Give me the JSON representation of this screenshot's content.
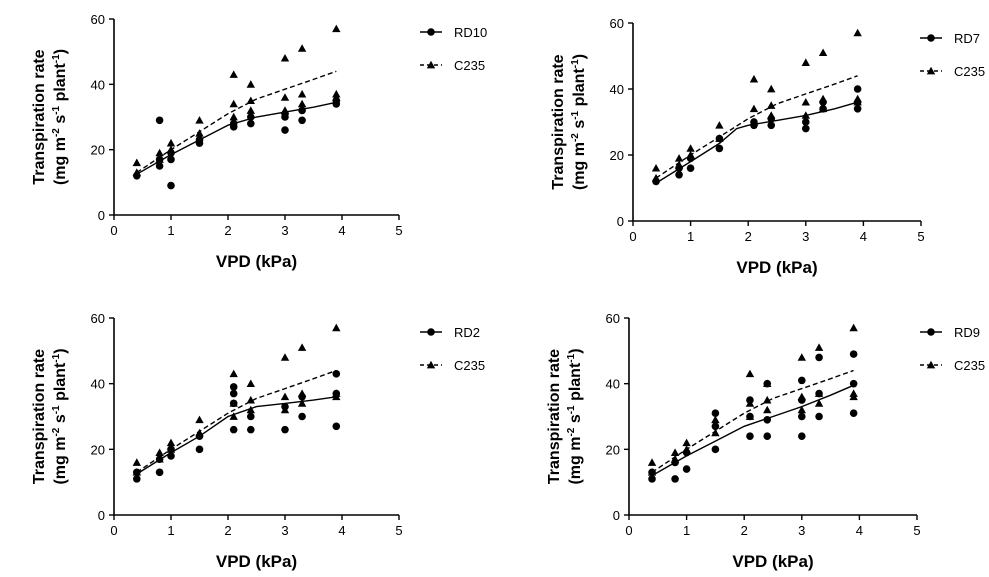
{
  "chart_data": [
    {
      "type": "scatter",
      "xlabel": "VPD (kPa)",
      "ylabel_line1": "Transpiration rate",
      "ylabel_line2_parts": [
        "(mg m",
        "-2",
        " s",
        "-1",
        " plant",
        "-1",
        ")"
      ],
      "xlim": [
        0,
        5
      ],
      "ylim": [
        0,
        60
      ],
      "xticks": [
        "0",
        "1",
        "2",
        "3",
        "4",
        "5"
      ],
      "yticks": [
        "0",
        "20",
        "40",
        "60"
      ],
      "legend_position": "top-right",
      "series": [
        {
          "name": "RD10",
          "marker": "circle",
          "line": "solid",
          "points": [
            [
              0.4,
              12
            ],
            [
              0.8,
              15
            ],
            [
              0.8,
              17
            ],
            [
              0.8,
              29
            ],
            [
              1.0,
              9
            ],
            [
              1.0,
              17
            ],
            [
              1.0,
              19
            ],
            [
              1.5,
              22
            ],
            [
              1.5,
              23
            ],
            [
              2.1,
              27
            ],
            [
              2.1,
              28
            ],
            [
              2.4,
              28
            ],
            [
              2.4,
              30
            ],
            [
              3.0,
              26
            ],
            [
              3.0,
              30
            ],
            [
              3.0,
              31
            ],
            [
              3.3,
              29
            ],
            [
              3.3,
              32
            ],
            [
              3.9,
              34
            ],
            [
              3.9,
              35
            ]
          ],
          "fit": [
            [
              0.4,
              12.5
            ],
            [
              1.0,
              18.5
            ],
            [
              1.5,
              23
            ],
            [
              2.0,
              27.5
            ],
            [
              2.5,
              30
            ],
            [
              3.0,
              31.5
            ],
            [
              3.5,
              33
            ],
            [
              3.9,
              34.5
            ]
          ]
        },
        {
          "name": "C235",
          "marker": "triangle",
          "line": "dashed",
          "points": [
            [
              0.4,
              13
            ],
            [
              0.4,
              16
            ],
            [
              0.8,
              17
            ],
            [
              0.8,
              19
            ],
            [
              1.0,
              20
            ],
            [
              1.0,
              22
            ],
            [
              1.5,
              25
            ],
            [
              1.5,
              29
            ],
            [
              2.1,
              30
            ],
            [
              2.1,
              34
            ],
            [
              2.1,
              43
            ],
            [
              2.4,
              32
            ],
            [
              2.4,
              35
            ],
            [
              2.4,
              40
            ],
            [
              3.0,
              32
            ],
            [
              3.0,
              36
            ],
            [
              3.0,
              48
            ],
            [
              3.3,
              34
            ],
            [
              3.3,
              37
            ],
            [
              3.3,
              51
            ],
            [
              3.9,
              36
            ],
            [
              3.9,
              37
            ],
            [
              3.9,
              57
            ]
          ],
          "fit": [
            [
              0.4,
              13
            ],
            [
              1.0,
              20
            ],
            [
              1.5,
              25.5
            ],
            [
              2.0,
              31
            ],
            [
              2.5,
              35.5
            ],
            [
              3.0,
              38.5
            ],
            [
              3.5,
              41.5
            ],
            [
              3.9,
              44
            ]
          ]
        }
      ]
    },
    {
      "type": "scatter",
      "xlabel": "VPD (kPa)",
      "ylabel_line1": "Transpiration rate",
      "ylabel_line2_parts": [
        "(mg m",
        "-2",
        " s",
        "-1",
        " plant",
        "-1",
        ")"
      ],
      "xlim": [
        0,
        5
      ],
      "ylim": [
        0,
        60
      ],
      "xticks": [
        "0",
        "1",
        "2",
        "3",
        "4",
        "5"
      ],
      "yticks": [
        "0",
        "20",
        "40",
        "60"
      ],
      "legend_position": "top-right",
      "series": [
        {
          "name": "RD7",
          "marker": "circle",
          "line": "solid",
          "points": [
            [
              0.4,
              12
            ],
            [
              0.8,
              14
            ],
            [
              0.8,
              16
            ],
            [
              1.0,
              16
            ],
            [
              1.0,
              19
            ],
            [
              1.5,
              22
            ],
            [
              1.5,
              25
            ],
            [
              2.1,
              29
            ],
            [
              2.1,
              30
            ],
            [
              2.4,
              29
            ],
            [
              2.4,
              31
            ],
            [
              3.0,
              28
            ],
            [
              3.0,
              30
            ],
            [
              3.3,
              34
            ],
            [
              3.3,
              36
            ],
            [
              3.9,
              34
            ],
            [
              3.9,
              36
            ],
            [
              3.9,
              40
            ]
          ],
          "fit": [
            [
              0.4,
              11.5
            ],
            [
              1.0,
              18
            ],
            [
              1.5,
              23.5
            ],
            [
              1.8,
              28
            ],
            [
              2.0,
              29
            ],
            [
              2.5,
              30.5
            ],
            [
              3.0,
              32
            ],
            [
              3.5,
              34
            ],
            [
              3.9,
              36
            ]
          ]
        },
        {
          "name": "C235",
          "marker": "triangle",
          "line": "dashed",
          "points": [
            [
              0.4,
              13
            ],
            [
              0.4,
              16
            ],
            [
              0.8,
              17
            ],
            [
              0.8,
              19
            ],
            [
              1.0,
              20
            ],
            [
              1.0,
              22
            ],
            [
              1.5,
              25
            ],
            [
              1.5,
              29
            ],
            [
              2.1,
              30
            ],
            [
              2.1,
              34
            ],
            [
              2.1,
              43
            ],
            [
              2.4,
              32
            ],
            [
              2.4,
              35
            ],
            [
              2.4,
              40
            ],
            [
              3.0,
              32
            ],
            [
              3.0,
              36
            ],
            [
              3.0,
              48
            ],
            [
              3.3,
              34
            ],
            [
              3.3,
              37
            ],
            [
              3.3,
              51
            ],
            [
              3.9,
              36
            ],
            [
              3.9,
              37
            ],
            [
              3.9,
              57
            ]
          ],
          "fit": [
            [
              0.4,
              13
            ],
            [
              1.0,
              20
            ],
            [
              1.5,
              25.5
            ],
            [
              2.0,
              31
            ],
            [
              2.5,
              35.5
            ],
            [
              3.0,
              38.5
            ],
            [
              3.5,
              41.5
            ],
            [
              3.9,
              44
            ]
          ]
        }
      ]
    },
    {
      "type": "scatter",
      "xlabel": "VPD (kPa)",
      "ylabel_line1": "Transpiration rate",
      "ylabel_line2_parts": [
        "(mg m",
        "-2",
        " s",
        "-1",
        " plant",
        "-1",
        ")"
      ],
      "xlim": [
        0,
        5
      ],
      "ylim": [
        0,
        60
      ],
      "xticks": [
        "0",
        "1",
        "2",
        "3",
        "4",
        "5"
      ],
      "yticks": [
        "0",
        "20",
        "40",
        "60"
      ],
      "legend_position": "top-right",
      "series": [
        {
          "name": "RD2",
          "marker": "circle",
          "line": "solid",
          "points": [
            [
              0.4,
              11
            ],
            [
              0.4,
              13
            ],
            [
              0.8,
              13
            ],
            [
              0.8,
              17
            ],
            [
              1.0,
              18
            ],
            [
              1.0,
              20
            ],
            [
              1.5,
              20
            ],
            [
              1.5,
              24
            ],
            [
              2.1,
              26
            ],
            [
              2.1,
              34
            ],
            [
              2.1,
              37
            ],
            [
              2.1,
              39
            ],
            [
              2.4,
              26
            ],
            [
              2.4,
              30
            ],
            [
              3.0,
              26
            ],
            [
              3.0,
              33
            ],
            [
              3.3,
              30
            ],
            [
              3.3,
              36
            ],
            [
              3.9,
              27
            ],
            [
              3.9,
              37
            ],
            [
              3.9,
              43
            ]
          ],
          "fit": [
            [
              0.4,
              12.5
            ],
            [
              1.0,
              19
            ],
            [
              1.5,
              24
            ],
            [
              2.0,
              30
            ],
            [
              2.5,
              33
            ],
            [
              3.0,
              34
            ],
            [
              3.5,
              35
            ],
            [
              3.9,
              36
            ]
          ]
        },
        {
          "name": "C235",
          "marker": "triangle",
          "line": "dashed",
          "points": [
            [
              0.4,
              13
            ],
            [
              0.4,
              16
            ],
            [
              0.8,
              17
            ],
            [
              0.8,
              19
            ],
            [
              1.0,
              20
            ],
            [
              1.0,
              22
            ],
            [
              1.5,
              25
            ],
            [
              1.5,
              29
            ],
            [
              2.1,
              30
            ],
            [
              2.1,
              34
            ],
            [
              2.1,
              43
            ],
            [
              2.4,
              32
            ],
            [
              2.4,
              35
            ],
            [
              2.4,
              40
            ],
            [
              3.0,
              32
            ],
            [
              3.0,
              36
            ],
            [
              3.0,
              48
            ],
            [
              3.3,
              34
            ],
            [
              3.3,
              37
            ],
            [
              3.3,
              51
            ],
            [
              3.9,
              36
            ],
            [
              3.9,
              37
            ],
            [
              3.9,
              57
            ]
          ],
          "fit": [
            [
              0.4,
              13
            ],
            [
              1.0,
              20
            ],
            [
              1.5,
              25.5
            ],
            [
              2.0,
              31
            ],
            [
              2.5,
              35.5
            ],
            [
              3.0,
              38.5
            ],
            [
              3.5,
              41.5
            ],
            [
              3.9,
              44
            ]
          ]
        }
      ]
    },
    {
      "type": "scatter",
      "xlabel": "VPD (kPa)",
      "ylabel_line1": "Transpiration rate",
      "ylabel_line2_parts": [
        "(mg m",
        "-2",
        " s",
        "-1",
        " plant",
        "-1",
        ")"
      ],
      "xlim": [
        0,
        5
      ],
      "ylim": [
        0,
        60
      ],
      "xticks": [
        "0",
        "1",
        "2",
        "3",
        "4",
        "5"
      ],
      "yticks": [
        "0",
        "20",
        "40",
        "60"
      ],
      "legend_position": "top-right",
      "series": [
        {
          "name": "RD9",
          "marker": "circle",
          "line": "solid",
          "points": [
            [
              0.4,
              11
            ],
            [
              0.4,
              13
            ],
            [
              0.8,
              11
            ],
            [
              0.8,
              16
            ],
            [
              1.0,
              14
            ],
            [
              1.0,
              19
            ],
            [
              1.5,
              20
            ],
            [
              1.5,
              27
            ],
            [
              1.5,
              31
            ],
            [
              2.1,
              24
            ],
            [
              2.1,
              30
            ],
            [
              2.1,
              35
            ],
            [
              2.4,
              24
            ],
            [
              2.4,
              29
            ],
            [
              2.4,
              40
            ],
            [
              3.0,
              24
            ],
            [
              3.0,
              30
            ],
            [
              3.0,
              35
            ],
            [
              3.0,
              41
            ],
            [
              3.3,
              30
            ],
            [
              3.3,
              37
            ],
            [
              3.3,
              48
            ],
            [
              3.9,
              31
            ],
            [
              3.9,
              40
            ],
            [
              3.9,
              49
            ]
          ],
          "fit": [
            [
              0.4,
              12
            ],
            [
              1.0,
              18
            ],
            [
              1.5,
              22.5
            ],
            [
              2.0,
              27
            ],
            [
              2.5,
              30
            ],
            [
              3.0,
              33
            ],
            [
              3.5,
              36.5
            ],
            [
              3.9,
              39.5
            ]
          ]
        },
        {
          "name": "C235",
          "marker": "triangle",
          "line": "dashed",
          "points": [
            [
              0.4,
              13
            ],
            [
              0.4,
              16
            ],
            [
              0.8,
              17
            ],
            [
              0.8,
              19
            ],
            [
              1.0,
              20
            ],
            [
              1.0,
              22
            ],
            [
              1.5,
              25
            ],
            [
              1.5,
              29
            ],
            [
              2.1,
              30
            ],
            [
              2.1,
              34
            ],
            [
              2.1,
              43
            ],
            [
              2.4,
              32
            ],
            [
              2.4,
              35
            ],
            [
              2.4,
              40
            ],
            [
              3.0,
              32
            ],
            [
              3.0,
              36
            ],
            [
              3.0,
              48
            ],
            [
              3.3,
              34
            ],
            [
              3.3,
              37
            ],
            [
              3.3,
              51
            ],
            [
              3.9,
              36
            ],
            [
              3.9,
              37
            ],
            [
              3.9,
              57
            ]
          ],
          "fit": [
            [
              0.4,
              13
            ],
            [
              1.0,
              20
            ],
            [
              1.5,
              25.5
            ],
            [
              2.0,
              31
            ],
            [
              2.5,
              35.5
            ],
            [
              3.0,
              38.5
            ],
            [
              3.5,
              41.5
            ],
            [
              3.9,
              44
            ]
          ]
        }
      ]
    }
  ]
}
